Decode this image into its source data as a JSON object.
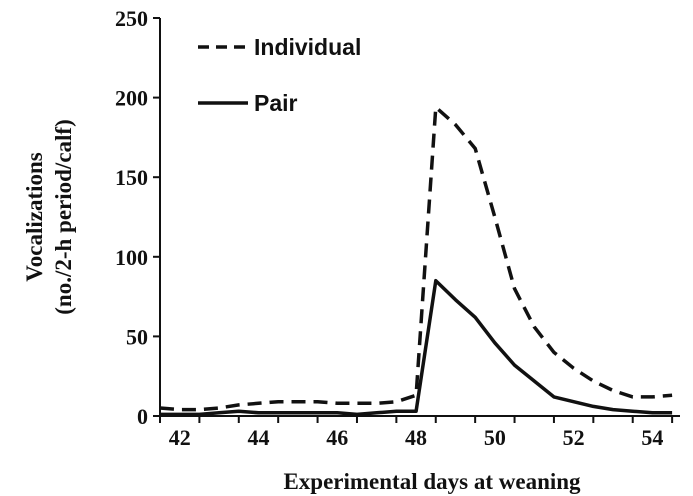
{
  "chart_data": {
    "type": "line",
    "title": "",
    "xlabel": "Experimental days at weaning",
    "ylabel_lines": [
      "Vocalizations",
      "(no./2-h period/calf)"
    ],
    "xlim": [
      41.5,
      54.7
    ],
    "ylim": [
      0,
      250
    ],
    "xticks": [
      42,
      44,
      46,
      48,
      50,
      52,
      54
    ],
    "yticks": [
      0,
      50,
      100,
      150,
      200,
      250
    ],
    "grid": false,
    "legend_position": "top-left",
    "series": [
      {
        "name": "Individual",
        "style": "dashed",
        "color": "#111111",
        "x": [
          41.5,
          42,
          42.5,
          43,
          43.5,
          44,
          44.5,
          45,
          45.5,
          46,
          46.5,
          47,
          47.5,
          48,
          48.5,
          49,
          49.5,
          50,
          50.5,
          51,
          51.5,
          52,
          52.5,
          53,
          53.5,
          54,
          54.5
        ],
        "y": [
          5,
          4,
          4,
          5,
          7,
          8,
          9,
          9,
          9,
          8,
          8,
          8,
          9,
          13,
          194,
          183,
          168,
          125,
          80,
          56,
          40,
          30,
          22,
          16,
          12,
          12,
          13
        ]
      },
      {
        "name": "Pair",
        "style": "solid",
        "color": "#111111",
        "x": [
          41.5,
          42,
          42.5,
          43,
          43.5,
          44,
          44.5,
          45,
          45.5,
          46,
          46.5,
          47,
          47.5,
          48,
          48.5,
          49,
          49.5,
          50,
          50.5,
          51,
          51.5,
          52,
          52.5,
          53,
          53.5,
          54,
          54.5
        ],
        "y": [
          1,
          1,
          1,
          2,
          3,
          2,
          2,
          2,
          2,
          2,
          1,
          2,
          3,
          3,
          85,
          73,
          62,
          46,
          32,
          22,
          12,
          9,
          6,
          4,
          3,
          2,
          2
        ]
      }
    ]
  }
}
